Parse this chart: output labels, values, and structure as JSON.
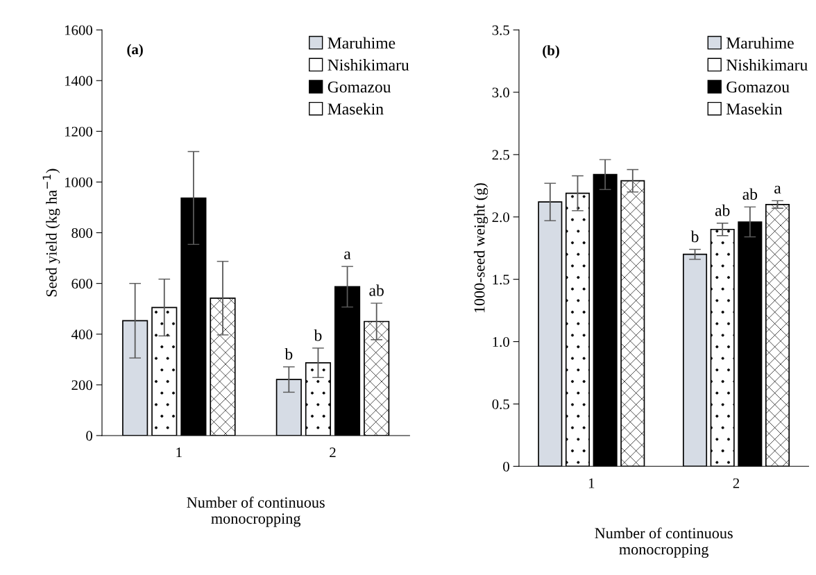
{
  "chart_data": [
    {
      "type": "bar",
      "annotations": [
        "(a)"
      ],
      "xlabel": "Number of continuous\nmonocropping",
      "ylabel": "Seed yield (kg ha$^{−1}$)",
      "categories": [
        "1",
        "2"
      ],
      "ylim": [
        0,
        1600
      ],
      "yticks": [
        0,
        200,
        400,
        600,
        800,
        1000,
        1200,
        1400,
        1600
      ],
      "grid": false,
      "legend": "top right",
      "series": [
        {
          "name": "Maruhime",
          "color": "#d6dce5",
          "values": [
            453,
            221
          ],
          "errors": [
            147,
            50
          ],
          "value_labels": [
            null,
            "b"
          ]
        },
        {
          "name": "Nishikimaru",
          "color": "#ffffff",
          "values": [
            505,
            287
          ],
          "errors": [
            112,
            58
          ],
          "value_labels": [
            null,
            "b"
          ]
        },
        {
          "name": "Gomazou",
          "color": "#000000",
          "values": [
            937,
            587
          ],
          "errors": [
            183,
            80
          ],
          "value_labels": [
            null,
            "a"
          ]
        },
        {
          "name": "Masekin",
          "color": "#ffffff",
          "values": [
            542,
            450
          ],
          "errors": [
            145,
            72
          ],
          "value_labels": [
            null,
            "ab"
          ]
        }
      ]
    },
    {
      "type": "bar",
      "annotations": [
        "(b)"
      ],
      "xlabel": "Number of continuous\nmonocropping",
      "ylabel": "1000-seed weight (g)",
      "categories": [
        "1",
        "2"
      ],
      "ylim": [
        0,
        3.5
      ],
      "yticks": [
        0,
        {
          "value": 0.5,
          "label": "0.5"
        },
        {
          "value": 1,
          "label": "1.0"
        },
        {
          "value": 1.5,
          "label": "1.5"
        },
        {
          "value": 2,
          "label": "2.0"
        },
        {
          "value": 2.5,
          "label": "2.5"
        },
        {
          "value": 3,
          "label": "3.0"
        },
        {
          "value": 3.5,
          "label": "3.5"
        }
      ],
      "grid": false,
      "legend": "top right",
      "series": [
        {
          "name": "Maruhime",
          "color": "#d6dce5",
          "values": [
            2.12,
            1.7
          ],
          "errors": [
            0.15,
            0.04
          ],
          "value_labels": [
            null,
            "b"
          ]
        },
        {
          "name": "Nishikimaru",
          "color": "#ffffff",
          "values": [
            2.19,
            1.9
          ],
          "errors": [
            0.14,
            0.05
          ],
          "value_labels": [
            null,
            "ab"
          ]
        },
        {
          "name": "Gomazou",
          "color": "#000000",
          "values": [
            2.34,
            1.96
          ],
          "errors": [
            0.12,
            0.12
          ],
          "value_labels": [
            null,
            "ab"
          ]
        },
        {
          "name": "Masekin",
          "color": "#ffffff",
          "values": [
            2.29,
            2.1
          ],
          "errors": [
            0.09,
            0.03
          ],
          "value_labels": [
            null,
            "a"
          ]
        }
      ]
    }
  ]
}
